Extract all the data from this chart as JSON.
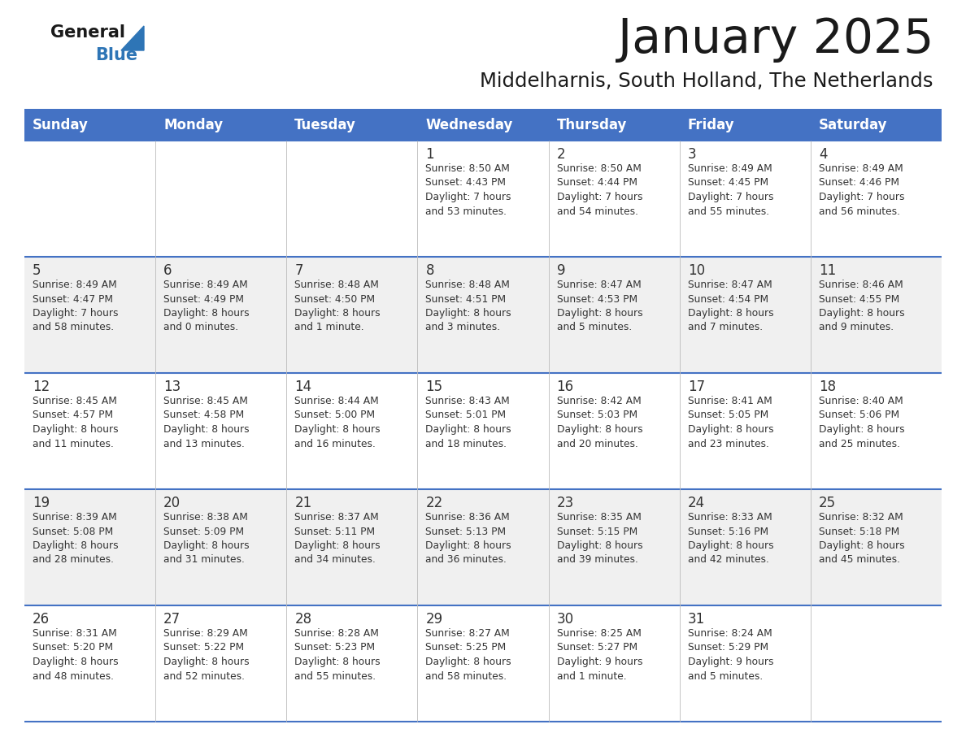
{
  "title": "January 2025",
  "subtitle": "Middelharnis, South Holland, The Netherlands",
  "header_color": "#4472C4",
  "header_text_color": "#FFFFFF",
  "background_color": "#FFFFFF",
  "cell_alt_color": "#F0F0F0",
  "border_color": "#4472C4",
  "text_color": "#333333",
  "days_of_week": [
    "Sunday",
    "Monday",
    "Tuesday",
    "Wednesday",
    "Thursday",
    "Friday",
    "Saturday"
  ],
  "calendar": [
    [
      {
        "day": "",
        "info": ""
      },
      {
        "day": "",
        "info": ""
      },
      {
        "day": "",
        "info": ""
      },
      {
        "day": "1",
        "info": "Sunrise: 8:50 AM\nSunset: 4:43 PM\nDaylight: 7 hours\nand 53 minutes."
      },
      {
        "day": "2",
        "info": "Sunrise: 8:50 AM\nSunset: 4:44 PM\nDaylight: 7 hours\nand 54 minutes."
      },
      {
        "day": "3",
        "info": "Sunrise: 8:49 AM\nSunset: 4:45 PM\nDaylight: 7 hours\nand 55 minutes."
      },
      {
        "day": "4",
        "info": "Sunrise: 8:49 AM\nSunset: 4:46 PM\nDaylight: 7 hours\nand 56 minutes."
      }
    ],
    [
      {
        "day": "5",
        "info": "Sunrise: 8:49 AM\nSunset: 4:47 PM\nDaylight: 7 hours\nand 58 minutes."
      },
      {
        "day": "6",
        "info": "Sunrise: 8:49 AM\nSunset: 4:49 PM\nDaylight: 8 hours\nand 0 minutes."
      },
      {
        "day": "7",
        "info": "Sunrise: 8:48 AM\nSunset: 4:50 PM\nDaylight: 8 hours\nand 1 minute."
      },
      {
        "day": "8",
        "info": "Sunrise: 8:48 AM\nSunset: 4:51 PM\nDaylight: 8 hours\nand 3 minutes."
      },
      {
        "day": "9",
        "info": "Sunrise: 8:47 AM\nSunset: 4:53 PM\nDaylight: 8 hours\nand 5 minutes."
      },
      {
        "day": "10",
        "info": "Sunrise: 8:47 AM\nSunset: 4:54 PM\nDaylight: 8 hours\nand 7 minutes."
      },
      {
        "day": "11",
        "info": "Sunrise: 8:46 AM\nSunset: 4:55 PM\nDaylight: 8 hours\nand 9 minutes."
      }
    ],
    [
      {
        "day": "12",
        "info": "Sunrise: 8:45 AM\nSunset: 4:57 PM\nDaylight: 8 hours\nand 11 minutes."
      },
      {
        "day": "13",
        "info": "Sunrise: 8:45 AM\nSunset: 4:58 PM\nDaylight: 8 hours\nand 13 minutes."
      },
      {
        "day": "14",
        "info": "Sunrise: 8:44 AM\nSunset: 5:00 PM\nDaylight: 8 hours\nand 16 minutes."
      },
      {
        "day": "15",
        "info": "Sunrise: 8:43 AM\nSunset: 5:01 PM\nDaylight: 8 hours\nand 18 minutes."
      },
      {
        "day": "16",
        "info": "Sunrise: 8:42 AM\nSunset: 5:03 PM\nDaylight: 8 hours\nand 20 minutes."
      },
      {
        "day": "17",
        "info": "Sunrise: 8:41 AM\nSunset: 5:05 PM\nDaylight: 8 hours\nand 23 minutes."
      },
      {
        "day": "18",
        "info": "Sunrise: 8:40 AM\nSunset: 5:06 PM\nDaylight: 8 hours\nand 25 minutes."
      }
    ],
    [
      {
        "day": "19",
        "info": "Sunrise: 8:39 AM\nSunset: 5:08 PM\nDaylight: 8 hours\nand 28 minutes."
      },
      {
        "day": "20",
        "info": "Sunrise: 8:38 AM\nSunset: 5:09 PM\nDaylight: 8 hours\nand 31 minutes."
      },
      {
        "day": "21",
        "info": "Sunrise: 8:37 AM\nSunset: 5:11 PM\nDaylight: 8 hours\nand 34 minutes."
      },
      {
        "day": "22",
        "info": "Sunrise: 8:36 AM\nSunset: 5:13 PM\nDaylight: 8 hours\nand 36 minutes."
      },
      {
        "day": "23",
        "info": "Sunrise: 8:35 AM\nSunset: 5:15 PM\nDaylight: 8 hours\nand 39 minutes."
      },
      {
        "day": "24",
        "info": "Sunrise: 8:33 AM\nSunset: 5:16 PM\nDaylight: 8 hours\nand 42 minutes."
      },
      {
        "day": "25",
        "info": "Sunrise: 8:32 AM\nSunset: 5:18 PM\nDaylight: 8 hours\nand 45 minutes."
      }
    ],
    [
      {
        "day": "26",
        "info": "Sunrise: 8:31 AM\nSunset: 5:20 PM\nDaylight: 8 hours\nand 48 minutes."
      },
      {
        "day": "27",
        "info": "Sunrise: 8:29 AM\nSunset: 5:22 PM\nDaylight: 8 hours\nand 52 minutes."
      },
      {
        "day": "28",
        "info": "Sunrise: 8:28 AM\nSunset: 5:23 PM\nDaylight: 8 hours\nand 55 minutes."
      },
      {
        "day": "29",
        "info": "Sunrise: 8:27 AM\nSunset: 5:25 PM\nDaylight: 8 hours\nand 58 minutes."
      },
      {
        "day": "30",
        "info": "Sunrise: 8:25 AM\nSunset: 5:27 PM\nDaylight: 9 hours\nand 1 minute."
      },
      {
        "day": "31",
        "info": "Sunrise: 8:24 AM\nSunset: 5:29 PM\nDaylight: 9 hours\nand 5 minutes."
      },
      {
        "day": "",
        "info": ""
      }
    ]
  ]
}
